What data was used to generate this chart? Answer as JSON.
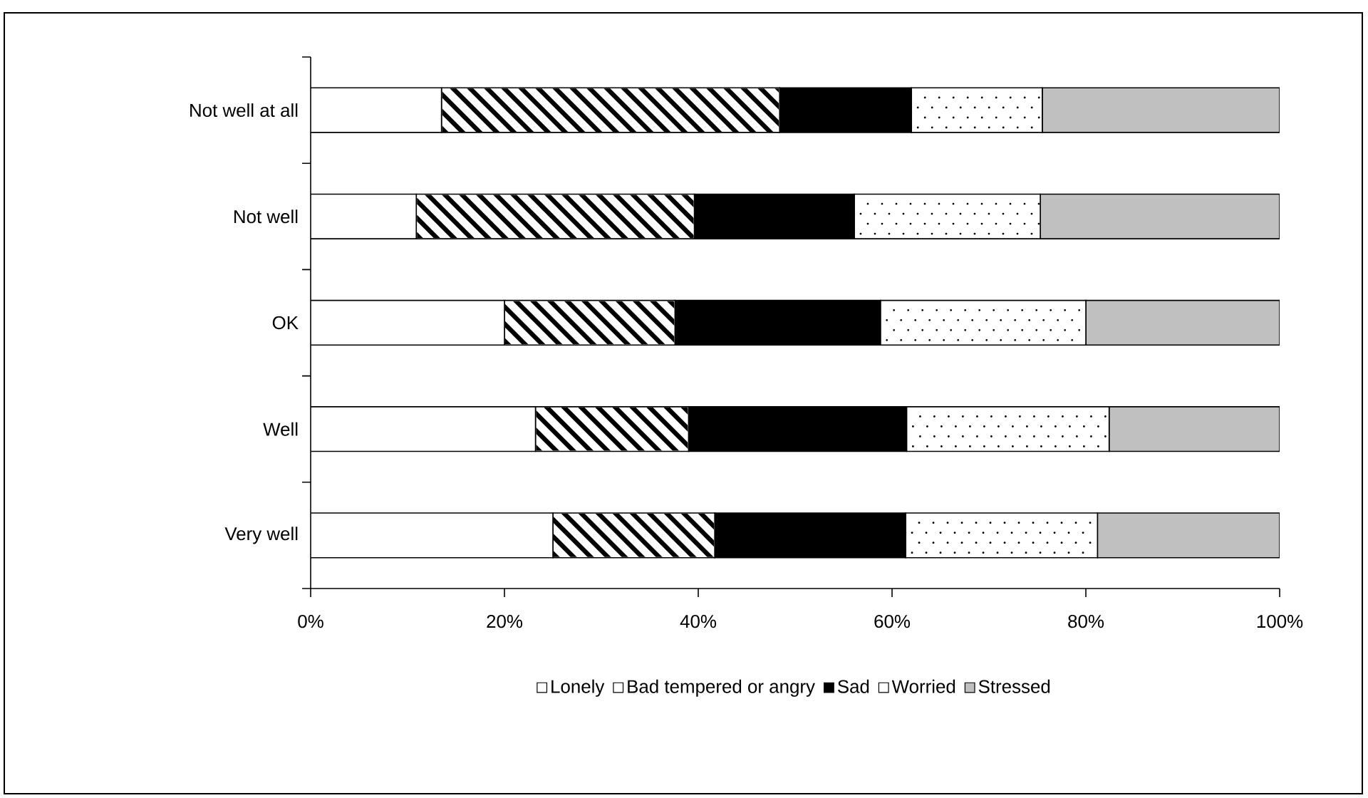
{
  "chart_data": {
    "type": "bar",
    "orientation": "horizontal",
    "stacked": true,
    "categories": [
      "Not well at all",
      "Not well",
      "OK",
      "Well",
      "Very well"
    ],
    "series": [
      {
        "name": "Lonely",
        "color": "#ffffff",
        "values": [
          13.5,
          10.9,
          20.0,
          23.2,
          25.0
        ]
      },
      {
        "name": "Bad tempered or angry",
        "color": "#ffffff",
        "values": [
          34.9,
          28.7,
          17.6,
          15.8,
          16.7
        ]
      },
      {
        "name": "Sad",
        "color": "#000000",
        "values": [
          13.6,
          16.5,
          21.2,
          22.5,
          19.7
        ]
      },
      {
        "name": "Worried",
        "color": "#ffffff",
        "values": [
          13.5,
          19.2,
          21.2,
          20.9,
          19.8
        ]
      },
      {
        "name": "Stressed",
        "color": "#c0c0c0",
        "values": [
          24.5,
          24.7,
          20.0,
          17.6,
          18.8
        ]
      }
    ],
    "xlim": [
      0,
      100
    ],
    "xticks": [
      {
        "value": 0,
        "label": "0%"
      },
      {
        "value": 20,
        "label": "20%"
      },
      {
        "value": 40,
        "label": "40%"
      },
      {
        "value": 60,
        "label": "60%"
      },
      {
        "value": 80,
        "label": "80%"
      },
      {
        "value": 100,
        "label": "100%"
      }
    ],
    "grid": false,
    "legend": "bottom"
  }
}
